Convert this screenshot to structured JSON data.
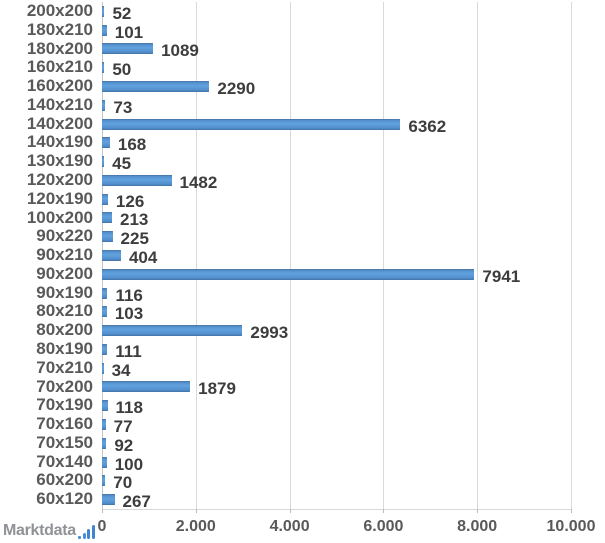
{
  "chart_data": {
    "type": "bar",
    "orientation": "horizontal",
    "title": "",
    "xlabel": "",
    "ylabel": "",
    "categories": [
      "200x200",
      "180x210",
      "180x200",
      "160x210",
      "160x200",
      "140x210",
      "140x200",
      "140x190",
      "130x190",
      "120x200",
      "120x190",
      "100x200",
      "90x220",
      "90x210",
      "90x200",
      "90x190",
      "80x210",
      "80x200",
      "80x190",
      "70x210",
      "70x200",
      "70x190",
      "70x160",
      "70x150",
      "70x140",
      "60x200",
      "60x120"
    ],
    "values": [
      52,
      101,
      1089,
      50,
      2290,
      73,
      6362,
      168,
      45,
      1482,
      126,
      213,
      225,
      404,
      7941,
      116,
      103,
      2993,
      111,
      34,
      1879,
      118,
      77,
      92,
      100,
      70,
      267
    ],
    "value_labels": [
      "52",
      "101",
      "1089",
      "50",
      "2290",
      "73",
      "6362",
      "168",
      "45",
      "1482",
      "126",
      "213",
      "225",
      "404",
      "7941",
      "116",
      "103",
      "2993",
      "111",
      "34",
      "1879",
      "118",
      "77",
      "92",
      "100",
      "70",
      "267"
    ],
    "x_axis": {
      "tick_labels": [
        "0",
        "2.000",
        "4.000",
        "6.000",
        "8.000",
        "10.000"
      ],
      "tick_values": [
        0,
        2000,
        4000,
        6000,
        8000,
        10000
      ],
      "min": 0,
      "max": 10000
    },
    "grid": true,
    "legend": "none",
    "bar_color": "#5b9bd5",
    "gridline_color": "#d9d9d9",
    "category_label_color": "#595959",
    "value_label_color": "#3d3d3d"
  },
  "branding": {
    "logo_text": "Marktdata",
    "logo_icon": "bar-chart-icon",
    "logo_text_color": "#8f9296",
    "logo_icon_color": "#4a90d9"
  }
}
